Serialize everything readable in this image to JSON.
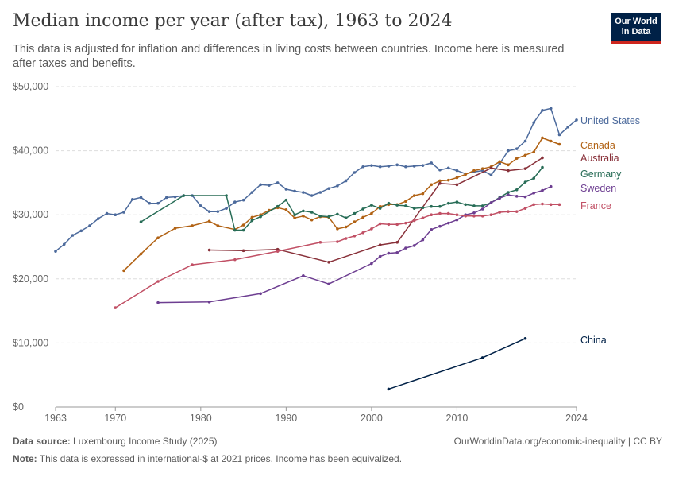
{
  "header": {
    "title": "Median income per year (after tax), 1963 to 2024",
    "subtitle": "This data is adjusted for inflation and differences in living costs between countries. Income here is measured after taxes and benefits.",
    "logo_line1": "Our World",
    "logo_line2": "in Data"
  },
  "footer": {
    "source_label": "Data source:",
    "source_text": "Luxembourg Income Study (2025)",
    "url_text": "OurWorldinData.org/economic-inequality | CC BY",
    "note_label": "Note:",
    "note_text": "This data is expressed in international-$ at 2021 prices. Income has been equivalized."
  },
  "chart_data": {
    "type": "line",
    "title": "Median income per year (after tax), 1963 to 2024",
    "xlim": [
      1963,
      2024
    ],
    "ylim": [
      0,
      50000
    ],
    "x_ticks": [
      1963,
      1970,
      1980,
      1990,
      2000,
      2010,
      2024
    ],
    "x_tick_labels": [
      "1963",
      "1970",
      "1980",
      "1990",
      "2000",
      "2010",
      "2024"
    ],
    "y_ticks": [
      0,
      10000,
      20000,
      30000,
      40000,
      50000
    ],
    "y_tick_labels": [
      "$0",
      "$10,000",
      "$20,000",
      "$30,000",
      "$40,000",
      "$50,000"
    ],
    "grid": "horizontal dashed",
    "legend": "line-end labels on right",
    "series": [
      {
        "name": "United States",
        "color": "#4c6a9c",
        "x": [
          1963,
          1964,
          1965,
          1966,
          1967,
          1968,
          1969,
          1970,
          1971,
          1972,
          1973,
          1974,
          1975,
          1976,
          1977,
          1978,
          1979,
          1980,
          1981,
          1982,
          1983,
          1984,
          1985,
          1986,
          1987,
          1988,
          1989,
          1990,
          1991,
          1992,
          1993,
          1994,
          1995,
          1996,
          1997,
          1998,
          1999,
          2000,
          2001,
          2002,
          2003,
          2004,
          2005,
          2006,
          2007,
          2008,
          2009,
          2010,
          2011,
          2012,
          2013,
          2014,
          2015,
          2016,
          2017,
          2018,
          2019,
          2020,
          2021,
          2022,
          2023,
          2024
        ],
        "y": [
          24300,
          25400,
          26800,
          27500,
          28300,
          29400,
          30200,
          30000,
          30400,
          32400,
          32700,
          31800,
          31800,
          32700,
          32800,
          33000,
          33000,
          31400,
          30500,
          30500,
          31000,
          32000,
          32300,
          33500,
          34700,
          34600,
          35000,
          34000,
          33700,
          33500,
          33000,
          33500,
          34100,
          34500,
          35300,
          36600,
          37500,
          37700,
          37500,
          37600,
          37800,
          37500,
          37600,
          37700,
          38100,
          37000,
          37300,
          36900,
          36400,
          36700,
          36900,
          36200,
          38000,
          40000,
          40300,
          41500,
          44400,
          46300,
          46600,
          42500,
          43700,
          44800
        ]
      },
      {
        "name": "Canada",
        "color": "#b16214",
        "x": [
          1971,
          1973,
          1975,
          1977,
          1979,
          1981,
          1982,
          1984,
          1985,
          1986,
          1987,
          1988,
          1989,
          1990,
          1991,
          1992,
          1993,
          1994,
          1995,
          1996,
          1997,
          1998,
          1999,
          2000,
          2001,
          2002,
          2003,
          2004,
          2005,
          2006,
          2007,
          2008,
          2009,
          2010,
          2011,
          2012,
          2013,
          2014,
          2015,
          2016,
          2017,
          2018,
          2019,
          2020,
          2021,
          2022
        ],
        "y": [
          21300,
          23900,
          26400,
          27900,
          28300,
          29000,
          28300,
          27700,
          28400,
          29600,
          30000,
          30700,
          31100,
          30800,
          29500,
          29800,
          29200,
          29700,
          29600,
          27800,
          28100,
          28900,
          29600,
          30200,
          31300,
          31600,
          31600,
          32100,
          33000,
          33300,
          34700,
          35300,
          35400,
          35800,
          36300,
          36900,
          37200,
          37500,
          38300,
          37800,
          38800,
          39300,
          39800,
          42000,
          41500,
          41000
        ]
      },
      {
        "name": "Australia",
        "color": "#883039",
        "x": [
          1981,
          1985,
          1989,
          1995,
          2001,
          2003,
          2008,
          2010,
          2014,
          2016,
          2018,
          2020
        ],
        "y": [
          24500,
          24400,
          24600,
          22600,
          25300,
          25700,
          34900,
          34700,
          37300,
          36900,
          37200,
          38900
        ]
      },
      {
        "name": "Germany",
        "color": "#286d57",
        "x": [
          1973,
          1978,
          1983,
          1984,
          1985,
          1986,
          1987,
          1989,
          1990,
          1991,
          1992,
          1993,
          1994,
          1995,
          1996,
          1997,
          1998,
          1999,
          2000,
          2001,
          2002,
          2003,
          2004,
          2005,
          2006,
          2007,
          2008,
          2009,
          2010,
          2011,
          2012,
          2013,
          2014,
          2015,
          2016,
          2017,
          2018,
          2019,
          2020
        ],
        "y": [
          28900,
          33000,
          33000,
          27600,
          27600,
          29100,
          29700,
          31300,
          32300,
          30000,
          30600,
          30400,
          29800,
          29700,
          30100,
          29500,
          30200,
          30900,
          31500,
          31000,
          31800,
          31500,
          31400,
          31000,
          31100,
          31300,
          31300,
          31800,
          32000,
          31600,
          31400,
          31400,
          31900,
          32700,
          33500,
          33900,
          35100,
          35700,
          37400
        ]
      },
      {
        "name": "Sweden",
        "color": "#6d3e91",
        "x": [
          1975,
          1981,
          1987,
          1992,
          1995,
          2000,
          2001,
          2002,
          2003,
          2004,
          2005,
          2006,
          2007,
          2008,
          2009,
          2010,
          2011,
          2012,
          2013,
          2014,
          2015,
          2016,
          2017,
          2018,
          2019,
          2020,
          2021
        ],
        "y": [
          16300,
          16400,
          17700,
          20500,
          19200,
          22400,
          23500,
          24000,
          24100,
          24800,
          25200,
          26100,
          27700,
          28200,
          28700,
          29200,
          30000,
          30300,
          30900,
          31900,
          32600,
          33100,
          32900,
          32800,
          33400,
          33800,
          34400
        ]
      },
      {
        "name": "France",
        "color": "#c15065",
        "x": [
          1970,
          1975,
          1979,
          1984,
          1989,
          1994,
          1996,
          1997,
          1998,
          1999,
          2000,
          2001,
          2002,
          2003,
          2004,
          2005,
          2006,
          2007,
          2008,
          2009,
          2010,
          2011,
          2012,
          2013,
          2014,
          2015,
          2016,
          2017,
          2018,
          2019,
          2020,
          2021,
          2022
        ],
        "y": [
          15500,
          19600,
          22200,
          23000,
          24300,
          25700,
          25800,
          26300,
          26700,
          27200,
          27800,
          28600,
          28500,
          28500,
          28700,
          29100,
          29500,
          30000,
          30200,
          30200,
          30000,
          29800,
          29800,
          29800,
          30000,
          30400,
          30500,
          30500,
          31000,
          31600,
          31700,
          31600,
          31600
        ]
      },
      {
        "name": "China",
        "color": "#002147",
        "x": [
          2002,
          2013,
          2018
        ],
        "y": [
          2800,
          7700,
          10700
        ]
      }
    ]
  }
}
